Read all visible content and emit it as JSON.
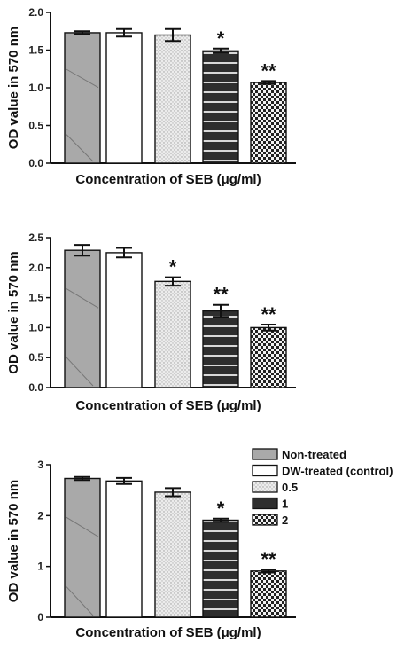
{
  "legend": {
    "entries": [
      "Non-treated",
      "DW-treated (control)",
      "0.5",
      "1",
      "2"
    ],
    "placement": "right of bottom panel"
  },
  "colors": {
    "Non-treated": "#a9a9a9",
    "DW-treated (control)": "#ffffff",
    "0.5": "#e2e2e2",
    "1": "#2e2e2e",
    "2": "#4a4a4a",
    "axis": "#111111"
  },
  "chart_data": [
    {
      "type": "bar",
      "title": "",
      "xlabel": "Concentration of SEB (μg/ml)",
      "ylabel": "OD value in 570 nm",
      "ylim": [
        0,
        2.0
      ],
      "yticks": [
        "0.0",
        "0.5",
        "1.0",
        "1.5",
        "2.0"
      ],
      "categories": [
        "Non-treated",
        "DW-treated (control)",
        "0.5",
        "1",
        "2"
      ],
      "values": [
        1.73,
        1.73,
        1.7,
        1.49,
        1.07
      ],
      "errors": [
        0.02,
        0.05,
        0.08,
        0.03,
        0.02
      ],
      "annotations": [
        "",
        "",
        "",
        "*",
        "**"
      ],
      "grid": false
    },
    {
      "type": "bar",
      "title": "",
      "xlabel": "Concentration of SEB (μg/ml)",
      "ylabel": "OD value in 570 nm",
      "ylim": [
        0,
        2.5
      ],
      "yticks": [
        "0.0",
        "0.5",
        "1.0",
        "1.5",
        "2.0",
        "2.5"
      ],
      "categories": [
        "Non-treated",
        "DW-treated (control)",
        "0.5",
        "1",
        "2"
      ],
      "values": [
        2.29,
        2.25,
        1.77,
        1.28,
        1.0
      ],
      "errors": [
        0.09,
        0.08,
        0.07,
        0.1,
        0.05
      ],
      "annotations": [
        "",
        "",
        "*",
        "**",
        "**"
      ],
      "grid": false
    },
    {
      "type": "bar",
      "title": "",
      "xlabel": "Concentration of SEB (μg/ml)",
      "ylabel": "OD value in 570 nm",
      "ylim": [
        0,
        3
      ],
      "yticks": [
        "0",
        "1",
        "2",
        "3"
      ],
      "categories": [
        "Non-treated",
        "DW-treated (control)",
        "0.5",
        "1",
        "2"
      ],
      "values": [
        2.73,
        2.68,
        2.46,
        1.91,
        0.91
      ],
      "errors": [
        0.03,
        0.06,
        0.08,
        0.03,
        0.03
      ],
      "annotations": [
        "",
        "",
        "",
        "*",
        "**"
      ],
      "grid": false
    }
  ]
}
